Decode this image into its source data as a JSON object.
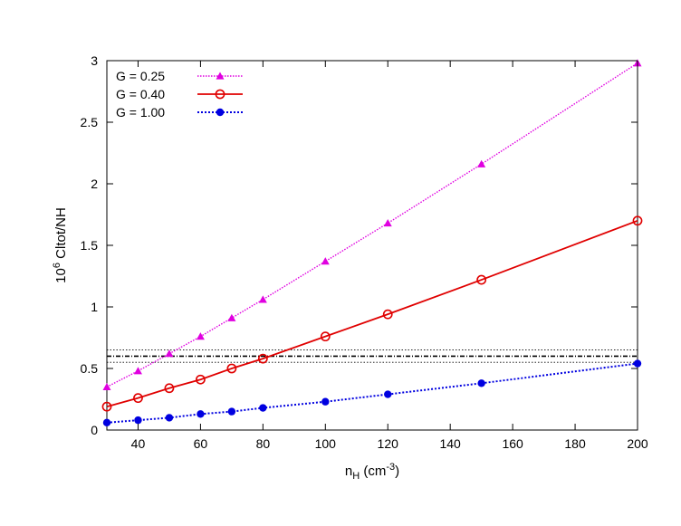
{
  "chart_data": {
    "type": "line",
    "xlabel": "n",
    "xlabel_sub": "H",
    "xlabel_unit_open": " (cm",
    "xlabel_unit_sup": "-3",
    "xlabel_unit_close": ")",
    "ylabel_base": "10",
    "ylabel_sup": "6",
    "ylabel_rest": " Cltot/NH",
    "xlim": [
      30,
      200
    ],
    "ylim": [
      0,
      3
    ],
    "xticks": [
      40,
      60,
      80,
      100,
      120,
      140,
      160,
      180,
      200
    ],
    "yticks": [
      0,
      0.5,
      1,
      1.5,
      2,
      2.5,
      3
    ],
    "xtick_labels": [
      "40",
      "60",
      "80",
      "100",
      "120",
      "140",
      "160",
      "180",
      "200"
    ],
    "ytick_labels": [
      "0",
      "0.5",
      "1",
      "1.5",
      "2",
      "2.5",
      "3"
    ],
    "grid": false,
    "legend_position": "top-left",
    "series": [
      {
        "name": "G = 0.25",
        "color": "#e000e0",
        "marker": "triangle",
        "line_style": "dotted",
        "x": [
          30,
          40,
          50,
          60,
          70,
          80,
          100,
          120,
          150,
          200
        ],
        "y": [
          0.35,
          0.48,
          0.62,
          0.76,
          0.91,
          1.06,
          1.37,
          1.68,
          2.16,
          2.98
        ]
      },
      {
        "name": "G = 0.40",
        "color": "#e00000",
        "marker": "open-circle",
        "line_style": "solid",
        "x": [
          30,
          40,
          50,
          60,
          70,
          80,
          100,
          120,
          150,
          200
        ],
        "y": [
          0.19,
          0.26,
          0.34,
          0.41,
          0.5,
          0.58,
          0.76,
          0.94,
          1.22,
          1.7
        ]
      },
      {
        "name": "G = 1.00",
        "color": "#0000e0",
        "marker": "filled-circle",
        "line_style": "dotted",
        "x": [
          30,
          40,
          50,
          60,
          70,
          80,
          100,
          120,
          150,
          200
        ],
        "y": [
          0.06,
          0.08,
          0.1,
          0.13,
          0.15,
          0.18,
          0.23,
          0.29,
          0.38,
          0.54
        ]
      }
    ],
    "reference_lines": [
      {
        "y": 0.6,
        "style": "dash-dot"
      },
      {
        "y": 0.65,
        "style": "dotted"
      },
      {
        "y": 0.55,
        "style": "dotted"
      }
    ]
  }
}
